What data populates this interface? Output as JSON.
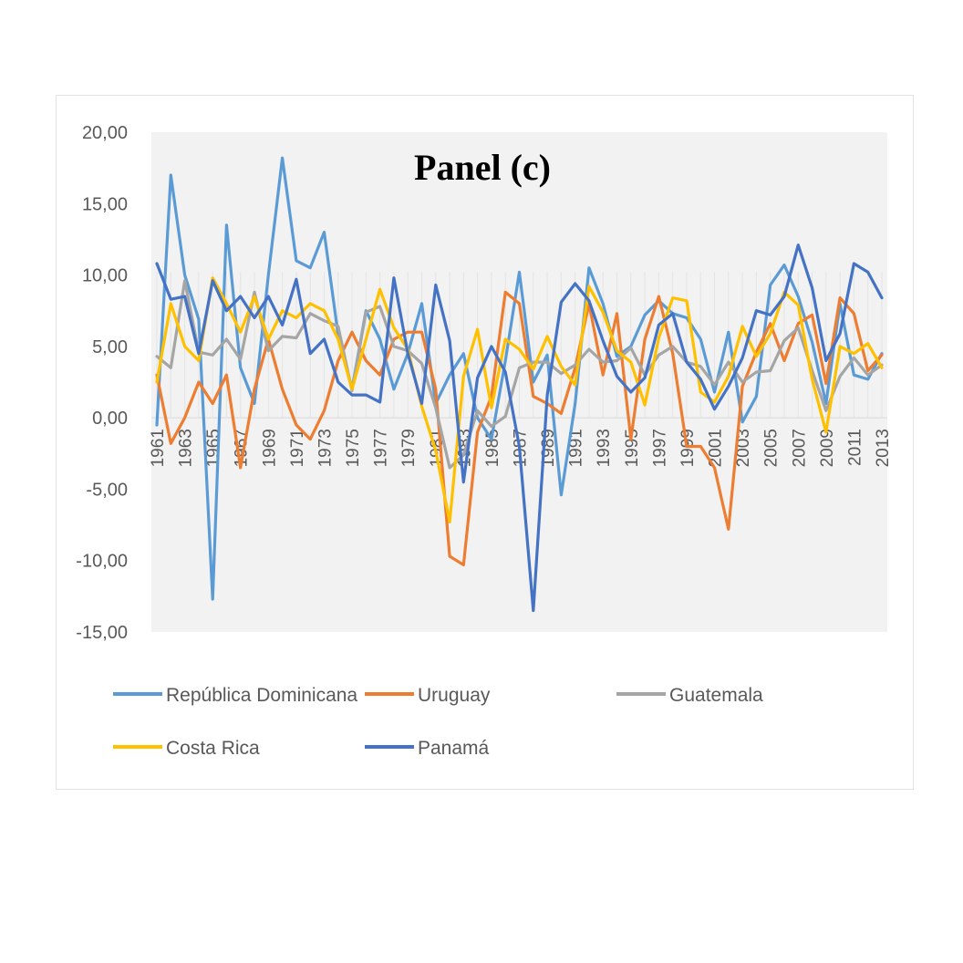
{
  "chart_data": {
    "type": "line",
    "title": "Panel (c)",
    "xlabel": "",
    "ylabel": "",
    "ylim": [
      -15,
      20
    ],
    "y_ticks": [
      "20,00",
      "15,00",
      "10,00",
      "5,00",
      "0,00",
      "-5,00",
      "-10,00",
      "-15,00"
    ],
    "x_tick_labels": [
      "1961",
      "1963",
      "1965",
      "1967",
      "1969",
      "1971",
      "1973",
      "1975",
      "1977",
      "1979",
      "1981",
      "1983",
      "1985",
      "1987",
      "1989",
      "1991",
      "1993",
      "1995",
      "1997",
      "1999",
      "2001",
      "2003",
      "2005",
      "2007",
      "2009",
      "2011",
      "2013"
    ],
    "x": [
      1961,
      1962,
      1963,
      1964,
      1965,
      1966,
      1967,
      1968,
      1969,
      1970,
      1971,
      1972,
      1973,
      1974,
      1975,
      1976,
      1977,
      1978,
      1979,
      1980,
      1981,
      1982,
      1983,
      1984,
      1985,
      1986,
      1987,
      1988,
      1989,
      1990,
      1991,
      1992,
      1993,
      1994,
      1995,
      1996,
      1997,
      1998,
      1999,
      2000,
      2001,
      2002,
      2003,
      2004,
      2005,
      2006,
      2007,
      2008,
      2009,
      2010,
      2011,
      2012,
      2013
    ],
    "grid": false,
    "legend_position": "bottom",
    "series": [
      {
        "name": "República Dominicana",
        "color": "#5b9bd5",
        "values": [
          -0.5,
          17.0,
          10.0,
          6.9,
          -12.7,
          13.5,
          3.5,
          1.0,
          10.0,
          18.2,
          11.0,
          10.5,
          13.0,
          5.8,
          2.0,
          7.5,
          5.5,
          2.0,
          4.5,
          8.0,
          1.0,
          3.0,
          4.5,
          0.0,
          -1.5,
          4.0,
          10.2,
          2.5,
          4.4,
          -5.4,
          1.0,
          10.5,
          8.0,
          4.3,
          5.0,
          7.2,
          8.2,
          7.3,
          7.0,
          5.5,
          1.8,
          6.0,
          -0.3,
          1.5,
          9.3,
          10.7,
          8.5,
          5.3,
          1.0,
          8.0,
          3.0,
          2.7,
          4.5
        ]
      },
      {
        "name": "Uruguay",
        "color": "#ed7d31",
        "values": [
          3.0,
          -1.8,
          0.0,
          2.5,
          1.0,
          3.0,
          -3.5,
          2.0,
          5.5,
          2.0,
          -0.5,
          -1.5,
          0.5,
          4.0,
          6.0,
          4.0,
          3.0,
          5.5,
          6.0,
          6.0,
          2.0,
          -9.7,
          -10.3,
          -1.0,
          1.5,
          8.8,
          8.0,
          1.5,
          1.0,
          0.3,
          3.5,
          8.0,
          3.0,
          7.3,
          -1.5,
          5.5,
          8.5,
          4.5,
          -2.0,
          -2.0,
          -3.5,
          -7.8,
          2.2,
          4.6,
          6.6,
          4.0,
          6.6,
          7.2,
          2.4,
          8.4,
          7.3,
          3.3,
          4.4
        ]
      },
      {
        "name": "Guatemala",
        "color": "#a5a5a5",
        "values": [
          4.3,
          3.5,
          9.6,
          4.6,
          4.4,
          5.5,
          4.1,
          8.8,
          4.7,
          5.7,
          5.6,
          7.3,
          6.8,
          6.4,
          1.9,
          7.4,
          7.8,
          5.0,
          4.7,
          3.8,
          0.7,
          -3.5,
          -2.6,
          0.5,
          -0.6,
          0.1,
          3.5,
          3.9,
          3.9,
          3.1,
          3.7,
          4.8,
          3.9,
          4.0,
          4.9,
          3.0,
          4.4,
          5.0,
          3.9,
          3.6,
          2.3,
          3.9,
          2.5,
          3.2,
          3.3,
          5.4,
          6.3,
          3.3,
          0.5,
          2.9,
          4.2,
          3.0,
          3.7
        ]
      },
      {
        "name": "Costa Rica",
        "color": "#ffc000",
        "values": [
          2.5,
          8.0,
          5.0,
          4.0,
          9.8,
          8.0,
          6.0,
          8.5,
          5.5,
          7.5,
          7.0,
          8.0,
          7.5,
          5.5,
          2.0,
          5.5,
          9.0,
          6.3,
          4.8,
          0.8,
          -2.3,
          -7.3,
          2.9,
          6.2,
          0.7,
          5.5,
          4.8,
          3.4,
          5.7,
          3.6,
          2.3,
          9.2,
          7.4,
          4.7,
          3.9,
          0.9,
          5.6,
          8.4,
          8.2,
          1.8,
          1.1,
          2.9,
          6.4,
          4.3,
          5.9,
          8.8,
          7.9,
          2.7,
          -1.0,
          5.0,
          4.5,
          5.2,
          3.5
        ]
      },
      {
        "name": "Panamá",
        "color": "#4472c4",
        "values": [
          10.8,
          8.3,
          8.5,
          4.5,
          9.6,
          7.5,
          8.5,
          7.0,
          8.5,
          6.5,
          9.7,
          4.5,
          5.5,
          2.5,
          1.6,
          1.6,
          1.1,
          9.8,
          4.5,
          1.0,
          9.3,
          5.4,
          -4.5,
          2.8,
          5.0,
          3.2,
          -2.0,
          -13.5,
          1.6,
          8.1,
          9.4,
          8.2,
          5.4,
          2.9,
          1.8,
          2.8,
          6.5,
          7.3,
          3.9,
          2.7,
          0.6,
          2.2,
          4.2,
          7.5,
          7.2,
          8.5,
          12.1,
          9.1,
          4.0,
          5.9,
          10.8,
          10.2,
          8.4
        ]
      }
    ]
  }
}
